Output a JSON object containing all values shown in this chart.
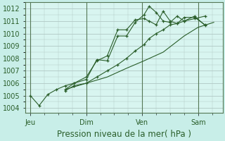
{
  "background_color": "#c8eee8",
  "plot_bg_color": "#d8f5f0",
  "grid_color": "#b0c8c4",
  "line_color": "#2a5e2a",
  "spine_color": "#557755",
  "xlabel": "Pression niveau de la mer( hPa )",
  "xlabel_fontsize": 8.5,
  "tick_label_fontsize": 7,
  "ylim": [
    1003.6,
    1012.5
  ],
  "yticks": [
    1004,
    1005,
    1006,
    1007,
    1008,
    1009,
    1010,
    1011,
    1012
  ],
  "day_labels": [
    "Jeu",
    "Dim",
    "Ven",
    "Sam"
  ],
  "day_positions": [
    0,
    32,
    64,
    96
  ],
  "xlim": [
    -3,
    110
  ],
  "lines": [
    {
      "x": [
        0,
        5,
        10,
        15,
        20,
        25,
        32,
        38,
        44,
        50,
        55,
        60,
        65,
        68,
        72,
        76,
        80,
        84,
        88,
        94,
        100
      ],
      "y": [
        1005.0,
        1004.2,
        1005.1,
        1005.5,
        1005.8,
        1006.0,
        1006.5,
        1007.8,
        1008.2,
        1010.3,
        1010.3,
        1011.1,
        1011.2,
        1011.0,
        1010.7,
        1011.8,
        1011.0,
        1010.8,
        1011.3,
        1011.3,
        1010.7
      ],
      "marker": "+"
    },
    {
      "x": [
        20,
        25,
        32,
        38,
        44,
        50,
        55,
        60,
        65,
        68,
        72,
        76,
        80,
        84,
        88,
        94,
        100
      ],
      "y": [
        1005.5,
        1006.0,
        1006.3,
        1007.9,
        1007.8,
        1009.8,
        1009.8,
        1010.9,
        1011.5,
        1012.2,
        1011.7,
        1011.0,
        1010.9,
        1011.4,
        1011.0,
        1011.4,
        1010.65
      ],
      "marker": "+"
    },
    {
      "x": [
        20,
        25,
        32,
        38,
        44,
        50,
        55,
        60,
        65,
        68,
        72,
        76,
        80,
        84,
        88,
        94,
        100
      ],
      "y": [
        1005.4,
        1005.8,
        1006.0,
        1006.5,
        1007.0,
        1007.5,
        1008.0,
        1008.6,
        1009.1,
        1009.6,
        1010.0,
        1010.3,
        1010.7,
        1010.8,
        1011.0,
        1011.2,
        1011.4
      ],
      "marker": "+"
    },
    {
      "x": [
        20,
        32,
        44,
        55,
        65,
        76,
        88,
        96,
        105
      ],
      "y": [
        1005.5,
        1006.0,
        1006.5,
        1007.2,
        1007.8,
        1008.5,
        1009.8,
        1010.5,
        1010.9
      ],
      "marker": null
    }
  ]
}
